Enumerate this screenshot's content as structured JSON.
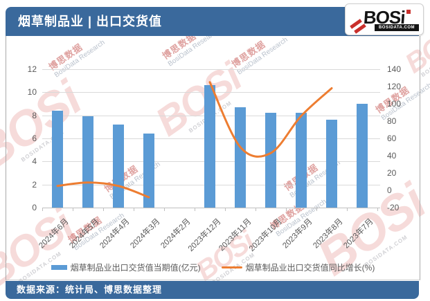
{
  "header": {
    "title": "烟草制品业 | 出口交货值"
  },
  "logo": {
    "brand": "BOSi",
    "site": "BOSIDATA.COM"
  },
  "chart_data": {
    "type": "bar",
    "subtype": "combo-bar-line",
    "categories": [
      "2024年6月",
      "2024年5月",
      "2024年4月",
      "2024年3月",
      "2024年2月",
      "2023年12月",
      "2023年11月",
      "2023年10月",
      "2023年9月",
      "2023年8月",
      "2023年7月"
    ],
    "series": [
      {
        "name": "烟草制品业出口交货值当期值(亿元)",
        "type": "bar",
        "axis": "left",
        "color": "#5B9BD5",
        "values": [
          8.4,
          7.9,
          7.2,
          6.4,
          null,
          10.6,
          8.7,
          8.2,
          8.2,
          7.6,
          9.0
        ]
      },
      {
        "name": "烟草制品业出口交货值同比增长(%)",
        "type": "line",
        "axis": "right",
        "color": "#ED7D31",
        "values": [
          5,
          9,
          5,
          -8,
          null,
          125,
          50,
          43,
          86,
          118,
          null
        ]
      }
    ],
    "left_axis": {
      "min": 0,
      "max": 12,
      "step": 2,
      "ticks": [
        "12",
        "10",
        "8",
        "6",
        "4",
        "2",
        "0"
      ]
    },
    "right_axis": {
      "min": -20,
      "max": 140,
      "step": 20,
      "ticks": [
        "140",
        "120",
        "100",
        "80",
        "60",
        "40",
        "20",
        "0",
        "-20"
      ]
    },
    "grid": true,
    "legend_position": "bottom",
    "title": "烟草制品业 | 出口交货值"
  },
  "footer": {
    "text": "数据来源：统计局、博思数据整理"
  },
  "watermark": {
    "brand": "BOSi",
    "site": "BOSIDATA.COM",
    "cn": "博思数据",
    "en": "BosiData Research"
  },
  "colors": {
    "theme_blue": "#3A699C",
    "bar_blue": "#5B9BD5",
    "line_orange": "#ED7D31",
    "grid_gray": "#D9D9D9",
    "axis_gray": "#BFBFBF",
    "label_gray": "#595959"
  }
}
